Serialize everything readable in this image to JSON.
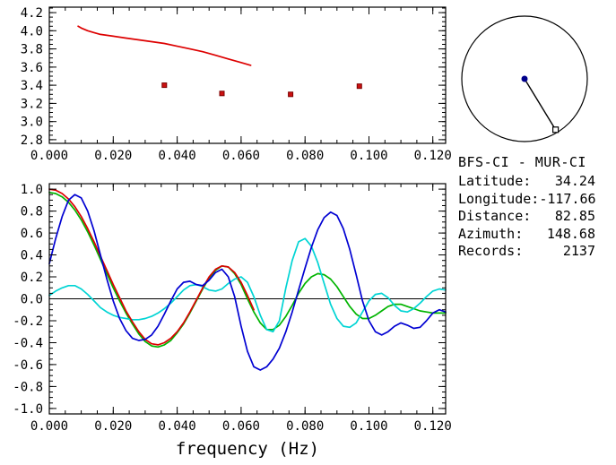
{
  "station_info": {
    "title": "BFS-CI - MUR-CI",
    "rows": [
      {
        "label": "Latitude:",
        "value": "34.24"
      },
      {
        "label": "Longitude:",
        "value": "-117.66"
      },
      {
        "label": "Distance:",
        "value": "82.85"
      },
      {
        "label": "Azimuth:",
        "value": "148.68"
      },
      {
        "label": "Records:",
        "value": "2137"
      }
    ]
  },
  "azimuth_plot": {
    "azimuth_deg": 148.68,
    "center_color": "#00008b",
    "marker": "open-square"
  },
  "chart_data": [
    {
      "type": "line",
      "panel": "dispersion-top",
      "title": "",
      "xlabel": "",
      "xlim": [
        0,
        0.124
      ],
      "ylim": [
        2.76,
        4.26
      ],
      "xminor": 0.005,
      "yminor": 0.05,
      "margins": {
        "l": 55,
        "r": 8,
        "t": 8,
        "b": 30
      },
      "xticks": {
        "values": [
          0,
          0.02,
          0.04,
          0.06,
          0.08,
          0.1,
          0.12
        ],
        "labels": [
          "0.000",
          "0.020",
          "0.040",
          "0.060",
          "0.080",
          "0.100",
          "0.120"
        ]
      },
      "yticks": {
        "values": [
          2.8,
          3.0,
          3.2,
          3.4,
          3.6,
          3.8,
          4.0,
          4.2
        ],
        "labels": [
          "2.8",
          "3.0",
          "3.2",
          "3.4",
          "3.6",
          "3.8",
          "4.0",
          "4.2"
        ]
      },
      "series": [
        {
          "name": "phase-velocity-curve",
          "color": "#dd0000",
          "x": [
            0.009,
            0.01,
            0.012,
            0.014,
            0.016,
            0.018,
            0.02,
            0.024,
            0.028,
            0.032,
            0.036,
            0.04,
            0.044,
            0.048,
            0.052,
            0.056,
            0.06,
            0.063
          ],
          "y": [
            4.05,
            4.03,
            4.0,
            3.98,
            3.96,
            3.95,
            3.94,
            3.92,
            3.9,
            3.88,
            3.86,
            3.83,
            3.8,
            3.77,
            3.73,
            3.69,
            3.65,
            3.62
          ]
        }
      ],
      "markers": [
        {
          "name": "velocity-picks",
          "shape": "square",
          "color": "#cc1111",
          "edge": "#7a0000",
          "x": [
            0.036,
            0.054,
            0.0755,
            0.097
          ],
          "y": [
            3.4,
            3.31,
            3.3,
            3.39
          ]
        }
      ]
    },
    {
      "type": "line",
      "panel": "correlation-bottom",
      "title": "",
      "xlabel": "frequency (Hz)",
      "xlim": [
        0,
        0.124
      ],
      "ylim": [
        -1.05,
        1.05
      ],
      "xminor": 0.005,
      "yminor": 0.05,
      "zero_line": true,
      "margins": {
        "l": 55,
        "r": 8,
        "t": 15,
        "b": 57
      },
      "xticks": {
        "values": [
          0,
          0.02,
          0.04,
          0.06,
          0.08,
          0.1,
          0.12
        ],
        "labels": [
          "0.000",
          "0.020",
          "0.040",
          "0.060",
          "0.080",
          "0.100",
          "0.120"
        ]
      },
      "yticks": {
        "values": [
          -1.0,
          -0.8,
          -0.6,
          -0.4,
          -0.2,
          0.0,
          0.2,
          0.4,
          0.6,
          0.8,
          1.0
        ],
        "labels": [
          "-1.0",
          "-0.8",
          "-0.6",
          "-0.4",
          "-0.2",
          "0.0",
          "0.2",
          "0.4",
          "0.6",
          "0.8",
          "1.0"
        ]
      },
      "series": [
        {
          "name": "green-trace",
          "color": "#00b400",
          "x_start": 0,
          "x_step": 0.002,
          "y": [
            0.97,
            0.96,
            0.93,
            0.88,
            0.81,
            0.72,
            0.61,
            0.49,
            0.36,
            0.23,
            0.1,
            -0.02,
            -0.13,
            -0.23,
            -0.32,
            -0.39,
            -0.43,
            -0.44,
            -0.42,
            -0.38,
            -0.31,
            -0.23,
            -0.13,
            -0.02,
            0.09,
            0.19,
            0.26,
            0.3,
            0.29,
            0.23,
            0.13,
            0.0,
            -0.12,
            -0.22,
            -0.28,
            -0.28,
            -0.24,
            -0.16,
            -0.06,
            0.05,
            0.14,
            0.2,
            0.23,
            0.22,
            0.18,
            0.11,
            0.02,
            -0.07,
            -0.14,
            -0.18,
            -0.18,
            -0.15,
            -0.11,
            -0.07,
            -0.05,
            -0.05,
            -0.07,
            -0.09,
            -0.11,
            -0.12,
            -0.13,
            -0.13,
            -0.13
          ]
        },
        {
          "name": "cyan-trace",
          "color": "#00d4d4",
          "x_start": 0,
          "x_step": 0.002,
          "y": [
            0.03,
            0.07,
            0.1,
            0.12,
            0.12,
            0.09,
            0.04,
            -0.02,
            -0.08,
            -0.12,
            -0.15,
            -0.17,
            -0.18,
            -0.19,
            -0.19,
            -0.18,
            -0.16,
            -0.13,
            -0.09,
            -0.04,
            0.02,
            0.08,
            0.12,
            0.13,
            0.11,
            0.08,
            0.07,
            0.09,
            0.14,
            0.18,
            0.2,
            0.15,
            0.02,
            -0.15,
            -0.28,
            -0.3,
            -0.2,
            0.1,
            0.35,
            0.52,
            0.55,
            0.48,
            0.33,
            0.14,
            -0.05,
            -0.18,
            -0.25,
            -0.26,
            -0.22,
            -0.12,
            -0.02,
            0.04,
            0.05,
            0.01,
            -0.06,
            -0.11,
            -0.12,
            -0.09,
            -0.04,
            0.02,
            0.07,
            0.09,
            0.08
          ]
        },
        {
          "name": "red-trace",
          "color": "#dd0000",
          "x_start": 0,
          "x_step": 0.002,
          "y": [
            1.0,
            0.99,
            0.96,
            0.91,
            0.84,
            0.75,
            0.64,
            0.52,
            0.39,
            0.26,
            0.13,
            0.01,
            -0.11,
            -0.21,
            -0.3,
            -0.37,
            -0.41,
            -0.42,
            -0.4,
            -0.36,
            -0.3,
            -0.22,
            -0.12,
            -0.01,
            0.1,
            0.2,
            0.27,
            0.3,
            0.29,
            0.24,
            0.15,
            0.03,
            -0.1
          ]
        },
        {
          "name": "blue-trace",
          "color": "#0000d2",
          "x_start": 0,
          "x_step": 0.002,
          "y": [
            0.32,
            0.55,
            0.75,
            0.9,
            0.95,
            0.92,
            0.8,
            0.62,
            0.4,
            0.18,
            -0.02,
            -0.18,
            -0.29,
            -0.36,
            -0.38,
            -0.37,
            -0.33,
            -0.25,
            -0.14,
            -0.02,
            0.09,
            0.15,
            0.16,
            0.13,
            0.12,
            0.17,
            0.24,
            0.27,
            0.2,
            0.02,
            -0.25,
            -0.48,
            -0.62,
            -0.65,
            -0.62,
            -0.55,
            -0.45,
            -0.3,
            -0.12,
            0.08,
            0.28,
            0.47,
            0.63,
            0.74,
            0.79,
            0.76,
            0.64,
            0.45,
            0.22,
            -0.02,
            -0.2,
            -0.3,
            -0.33,
            -0.3,
            -0.25,
            -0.22,
            -0.24,
            -0.27,
            -0.26,
            -0.2,
            -0.13,
            -0.1,
            -0.12
          ]
        }
      ]
    }
  ]
}
